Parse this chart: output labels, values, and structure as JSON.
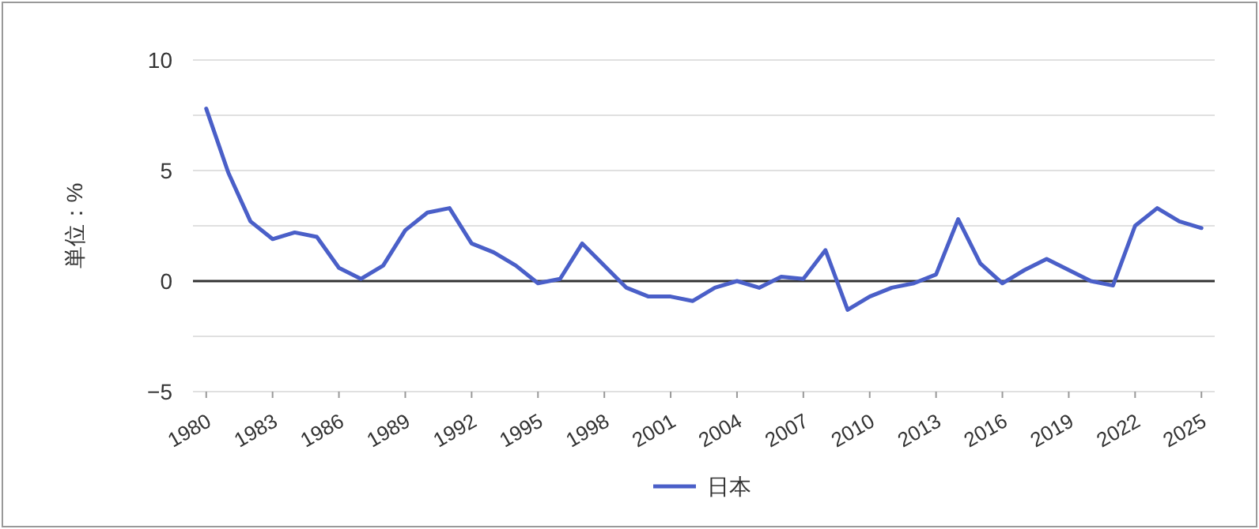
{
  "chart_data": {
    "type": "line",
    "ylabel": "単位：%",
    "x": [
      1980,
      1981,
      1982,
      1983,
      1984,
      1985,
      1986,
      1987,
      1988,
      1989,
      1990,
      1991,
      1992,
      1993,
      1994,
      1995,
      1996,
      1997,
      1998,
      1999,
      2000,
      2001,
      2002,
      2003,
      2004,
      2005,
      2006,
      2007,
      2008,
      2009,
      2010,
      2011,
      2012,
      2013,
      2014,
      2015,
      2016,
      2017,
      2018,
      2019,
      2020,
      2021,
      2022,
      2023,
      2024,
      2025
    ],
    "series": [
      {
        "name": "日本",
        "color": "#4a5fc8",
        "values": [
          7.8,
          4.9,
          2.7,
          1.9,
          2.2,
          2.0,
          0.6,
          0.1,
          0.7,
          2.3,
          3.1,
          3.3,
          1.7,
          1.3,
          0.7,
          -0.1,
          0.1,
          1.7,
          0.7,
          -0.3,
          -0.7,
          -0.7,
          -0.9,
          -0.3,
          0.0,
          -0.3,
          0.2,
          0.1,
          1.4,
          -1.3,
          -0.7,
          -0.3,
          -0.1,
          0.3,
          2.8,
          0.8,
          -0.1,
          0.5,
          1.0,
          0.5,
          0.0,
          -0.2,
          2.5,
          3.3,
          2.7,
          2.4
        ]
      }
    ],
    "xlim": [
      1979.4,
      2025.6
    ],
    "xticks": [
      1980,
      1983,
      1986,
      1989,
      1992,
      1995,
      1998,
      2001,
      2004,
      2007,
      2010,
      2013,
      2016,
      2019,
      2022,
      2025
    ],
    "ylim": [
      -5,
      10
    ],
    "yticks": [
      -5,
      {
        "value": -2.5,
        "label": null
      },
      0,
      {
        "value": 2.5,
        "label": null
      },
      5,
      {
        "value": 7.5,
        "label": null
      },
      10
    ],
    "ref_lines": [
      {
        "axis": "y",
        "value": 0,
        "color": "#333333"
      }
    ],
    "grid": "y",
    "legend": "bottom",
    "marker": "none",
    "line_style": "solid"
  }
}
